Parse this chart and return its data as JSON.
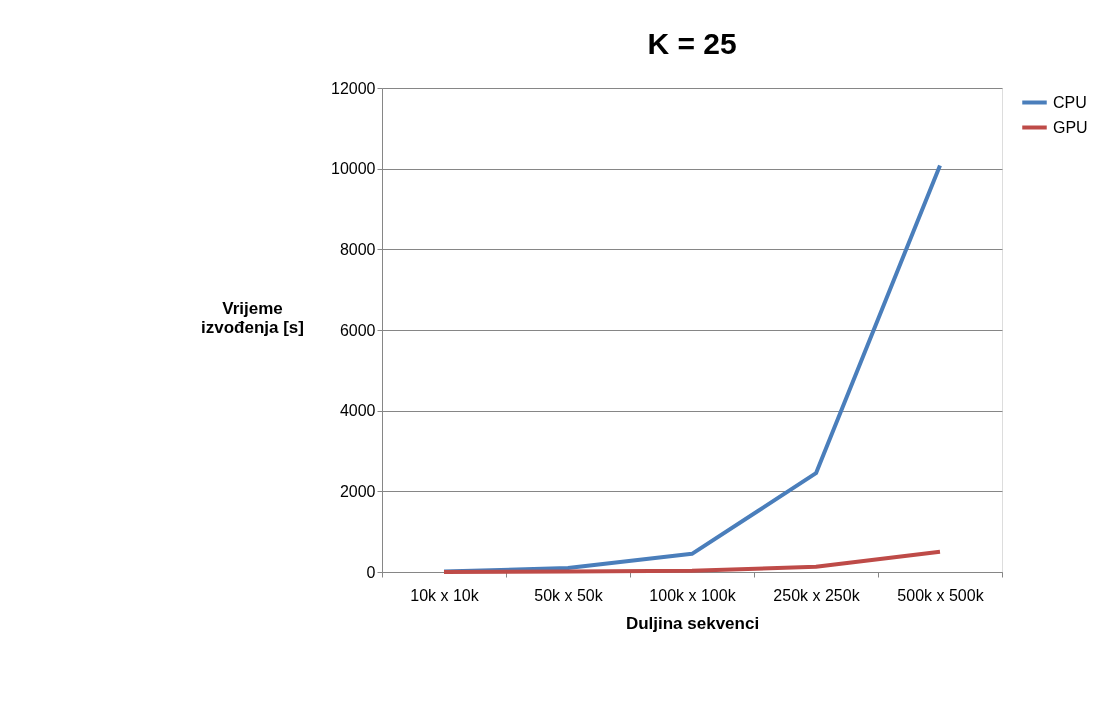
{
  "chart_data": {
    "type": "line",
    "title": "K = 25",
    "xlabel": "Duljina sekvenci",
    "ylabel": "Vrijeme izvođenja [s]",
    "categories": [
      "10k x 10k",
      "50k x 50k",
      "100k x 100k",
      "250k x 250k",
      "500k x 500k"
    ],
    "series": [
      {
        "name": "CPU",
        "color": "#4a7ebb",
        "values": [
          10,
          100,
          450,
          2450,
          10080
        ]
      },
      {
        "name": "GPU",
        "color": "#be4b48",
        "values": [
          0,
          10,
          30,
          130,
          500
        ]
      }
    ],
    "ylim": [
      0,
      12000
    ],
    "yticks": [
      0,
      2000,
      4000,
      6000,
      8000,
      10000,
      12000
    ],
    "grid": "y",
    "legend": "right",
    "marker": "none",
    "line_style": "solid"
  }
}
